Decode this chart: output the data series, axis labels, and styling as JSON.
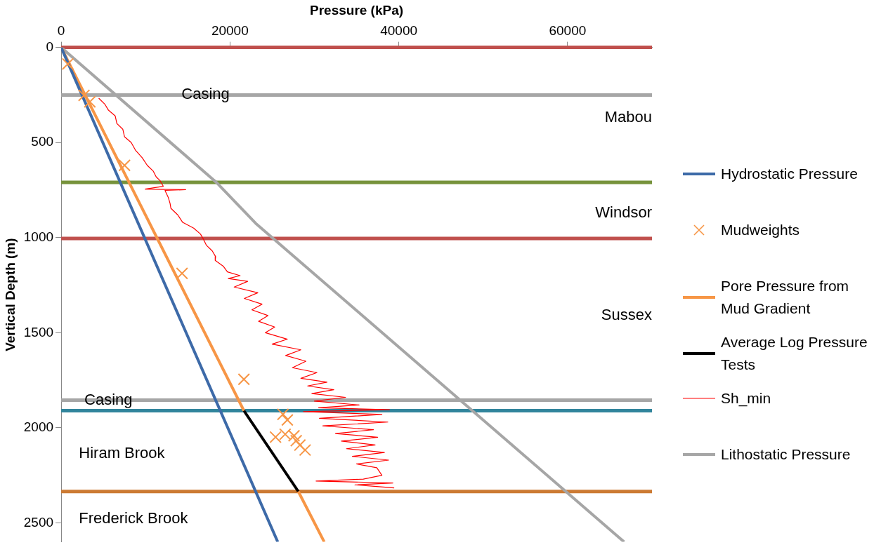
{
  "chart_data": {
    "type": "line",
    "xlabel": "Pressure (kPa)",
    "ylabel": "Vertical Depth (m)",
    "xlim": [
      0,
      70000
    ],
    "xticks": [
      0,
      20000,
      40000,
      60000
    ],
    "ylim": [
      2600,
      0
    ],
    "yticks": [
      0,
      500,
      1000,
      1500,
      2000,
      2500
    ],
    "grid": false,
    "legend": "right",
    "series": [
      {
        "name": "Hydrostatic Pressure",
        "color": "#3d6aa8",
        "x": [
          0,
          25660
        ],
        "values": [
          0,
          2600
        ]
      },
      {
        "name": "Mudweights",
        "type": "scatter",
        "marker": "cross",
        "color": "#f79646",
        "x": [
          786,
          2710,
          3400,
          7510,
          14320,
          21650,
          26280,
          26800,
          25400,
          26540,
          27590,
          27850,
          28290,
          28900
        ],
        "values": [
          87,
          252,
          286,
          620,
          1188,
          1745,
          1929,
          1959,
          2049,
          2034,
          2042,
          2068,
          2091,
          2117
        ]
      },
      {
        "name": "Pore Pressure from Mud Gradient",
        "color": "#f79646",
        "x": [
          0,
          21650,
          null,
          28100,
          31170
        ],
        "values": [
          0,
          1910,
          null,
          2335,
          2600
        ]
      },
      {
        "name": "Average Log Pressure Tests",
        "color": "#000000",
        "x": [
          21650,
          28100
        ],
        "values": [
          1910,
          2335
        ]
      },
      {
        "name": "Sh_min",
        "color": "#ff0000",
        "x": [
          4450,
          5200,
          5600,
          6400,
          6600,
          7300,
          7510,
          8300,
          8800,
          9600,
          10200,
          10900,
          11260,
          11700,
          12100,
          9950,
          14750,
          12300,
          12700,
          12900,
          13000,
          13800,
          14400,
          15700,
          16500,
          16850,
          17200,
          17900,
          18300,
          18250,
          19200,
          19700,
          21200,
          19800,
          22100,
          20500,
          23300,
          21700,
          23800,
          22600,
          24500,
          23400,
          25300,
          24200,
          26800,
          25000,
          28400,
          26600,
          29000,
          27400,
          30300,
          28400,
          31500,
          29200,
          32300,
          29700,
          33700,
          30000,
          35300,
          30500,
          38900,
          28700,
          38000,
          30600,
          38700,
          31000,
          37000,
          32500,
          37500,
          33200,
          37200,
          33800,
          38300,
          34500,
          38800,
          35000,
          37400,
          38000,
          35800,
          30200,
          39300,
          34800,
          39460
        ],
        "values": [
          267,
          300,
          330,
          360,
          400,
          430,
          470,
          500,
          540,
          580,
          620,
          650,
          681,
          700,
          730,
          745,
          748,
          752,
          790,
          820,
          846,
          880,
          920,
          950,
          981,
          1008,
          1040,
          1070,
          1100,
          1120,
          1150,
          1180,
          1200,
          1215,
          1230,
          1260,
          1290,
          1320,
          1350,
          1380,
          1410,
          1440,
          1470,
          1500,
          1534,
          1560,
          1590,
          1620,
          1650,
          1684,
          1710,
          1740,
          1760,
          1780,
          1800,
          1820,
          1840,
          1860,
          1880,
          1895,
          1905,
          1915,
          1930,
          1950,
          1970,
          1990,
          2010,
          2030,
          2050,
          2070,
          2090,
          2110,
          2130,
          2150,
          2170,
          2190,
          2210,
          2250,
          2270,
          2280,
          2290,
          2300,
          2316
        ]
      },
      {
        "name": "Lithostatic Pressure",
        "color": "#a6a6a6",
        "x": [
          0,
          18400,
          23050,
          66700
        ],
        "values": [
          0,
          710,
          925,
          2600
        ]
      }
    ],
    "ref_lines": [
      {
        "axis": "y",
        "value": 0,
        "color": "#c0504d"
      },
      {
        "axis": "y",
        "value": 250,
        "color": "#a6a6a6"
      },
      {
        "axis": "y",
        "value": 710,
        "color": "#77933c"
      },
      {
        "axis": "y",
        "value": 1005,
        "color": "#c0504d"
      },
      {
        "axis": "y",
        "value": 1855,
        "color": "#a6a6a6"
      },
      {
        "axis": "y",
        "value": 1910,
        "color": "#31859c"
      },
      {
        "axis": "y",
        "value": 2335,
        "color": "#cc7a33"
      }
    ],
    "annotations": [
      {
        "text": "Casing",
        "x": 17100,
        "y": 250
      },
      "Mabou",
      "Windsor",
      "Sussex",
      {
        "text": "Casing",
        "x": 5600,
        "y": 1855
      },
      "Hiram Brook",
      "Frederick Brook"
    ]
  }
}
